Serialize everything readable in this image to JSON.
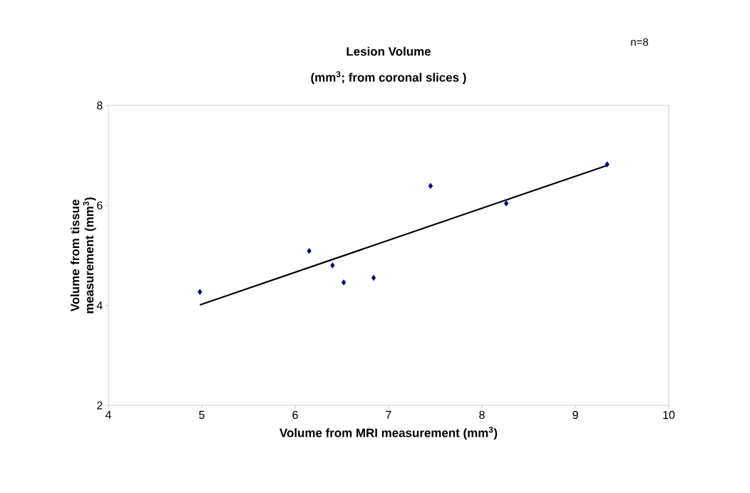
{
  "chart_data": {
    "type": "scatter",
    "title": "Lesion Volume",
    "subtitle": "(mm$^{3}$;  from coronal slices )",
    "annotations": [
      "n=8"
    ],
    "xlabel": "Volume from MRI measurement (mm$^{3}$)",
    "ylabel": "Volume from tissue measurement (mm$^{3}$)",
    "xlim": [
      4,
      10
    ],
    "ylim": [
      2,
      8
    ],
    "xticks": [
      4,
      5,
      6,
      7,
      8,
      9,
      10
    ],
    "yticks": [
      2,
      4,
      6,
      8
    ],
    "grid": false,
    "series": [
      {
        "color": "#000080",
        "marker": "diamond",
        "x": [
          4.98,
          6.15,
          6.4,
          6.52,
          6.84,
          7.45,
          8.26,
          9.34
        ],
        "values": [
          4.27,
          5.09,
          4.8,
          4.46,
          4.55,
          6.39,
          6.04,
          6.82
        ]
      },
      {
        "type": "line",
        "color": "#000000",
        "marker": "none",
        "line_style": "solid",
        "x": [
          4.98,
          9.34
        ],
        "values": [
          4.01,
          6.8
        ]
      }
    ]
  }
}
